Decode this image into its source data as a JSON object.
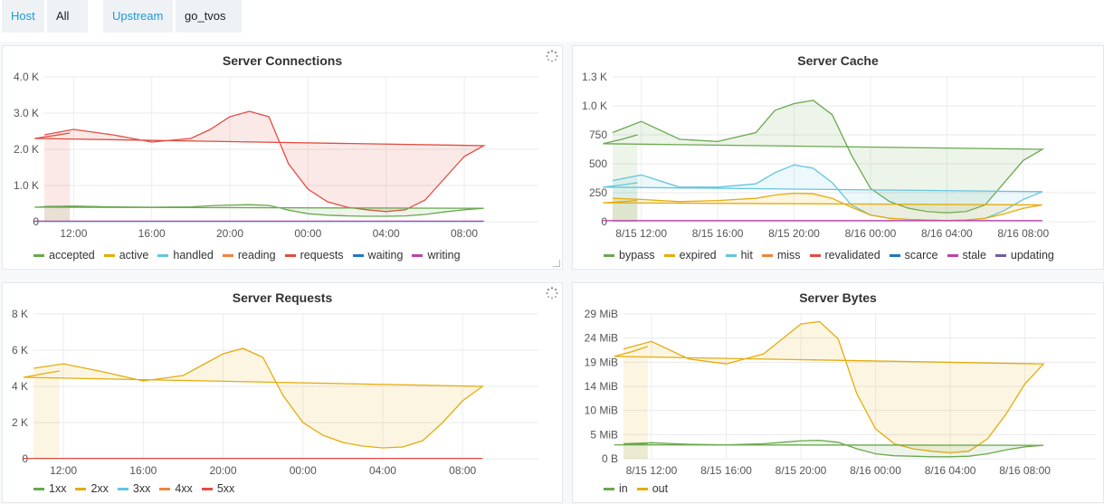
{
  "variables": {
    "host_label": "Host",
    "host_value": "All",
    "upstream_label": "Upstream",
    "upstream_value": "go_tvos"
  },
  "panels": {
    "connections": {
      "title": "Server Connections",
      "legend": [
        {
          "name": "accepted",
          "color": "#6aa84f"
        },
        {
          "name": "active",
          "color": "#e5ac0e"
        },
        {
          "name": "handled",
          "color": "#64c5e0"
        },
        {
          "name": "reading",
          "color": "#ef843c"
        },
        {
          "name": "requests",
          "color": "#e24d42"
        },
        {
          "name": "waiting",
          "color": "#1f78c1"
        },
        {
          "name": "writing",
          "color": "#ba43a9"
        }
      ]
    },
    "cache": {
      "title": "Server Cache",
      "legend": [
        {
          "name": "bypass",
          "color": "#6aa84f"
        },
        {
          "name": "expired",
          "color": "#e5ac0e"
        },
        {
          "name": "hit",
          "color": "#64c5e0"
        },
        {
          "name": "miss",
          "color": "#ef843c"
        },
        {
          "name": "revalidated",
          "color": "#e24d42"
        },
        {
          "name": "scarce",
          "color": "#1f78c1"
        },
        {
          "name": "stale",
          "color": "#ba43a9"
        },
        {
          "name": "updating",
          "color": "#705da0"
        }
      ]
    },
    "requests": {
      "title": "Server Requests",
      "legend": [
        {
          "name": "1xx",
          "color": "#6aa84f"
        },
        {
          "name": "2xx",
          "color": "#e5ac0e"
        },
        {
          "name": "3xx",
          "color": "#64c5e0"
        },
        {
          "name": "4xx",
          "color": "#ef843c"
        },
        {
          "name": "5xx",
          "color": "#e24d42"
        }
      ]
    },
    "bytes": {
      "title": "Server Bytes",
      "legend": [
        {
          "name": "in",
          "color": "#6aa84f"
        },
        {
          "name": "out",
          "color": "#e5ac0e"
        }
      ]
    }
  },
  "chart_data": [
    {
      "type": "area",
      "title": "Server Connections",
      "x_ticks": [
        "12:00",
        "16:00",
        "20:00",
        "00:00",
        "04:00",
        "08:00"
      ],
      "y_ticks": [
        "0",
        "1.0 K",
        "2.0 K",
        "3.0 K",
        "4.0 K"
      ],
      "ylim": [
        0,
        4000
      ],
      "x_hours": [
        10.5,
        12,
        14,
        16,
        18,
        19,
        20,
        21,
        22,
        23,
        0,
        1,
        2,
        3,
        4,
        5,
        6,
        7,
        8,
        9,
        10,
        11,
        11.8
      ],
      "series": [
        {
          "name": "requests",
          "color": "#e24d42",
          "values": [
            2400,
            2550,
            2400,
            2200,
            2300,
            2550,
            2900,
            3050,
            2900,
            1600,
            900,
            550,
            400,
            330,
            280,
            330,
            600,
            1200,
            1800,
            2100,
            2300,
            2380,
            2450
          ]
        },
        {
          "name": "accepted",
          "color": "#6aa84f",
          "values": [
            420,
            430,
            410,
            400,
            410,
            440,
            460,
            470,
            450,
            320,
            220,
            180,
            160,
            150,
            150,
            160,
            200,
            270,
            330,
            370,
            400,
            420,
            430
          ]
        },
        {
          "name": "waiting",
          "color": "#1f78c1",
          "values": [
            10,
            10,
            10,
            10,
            10,
            10,
            10,
            10,
            10,
            10,
            10,
            10,
            10,
            10,
            10,
            10,
            10,
            10,
            10,
            10,
            10,
            10,
            10
          ]
        },
        {
          "name": "writing",
          "color": "#ba43a9",
          "values": [
            15,
            15,
            15,
            15,
            15,
            15,
            15,
            15,
            15,
            15,
            15,
            15,
            15,
            15,
            15,
            15,
            15,
            15,
            15,
            15,
            15,
            15,
            15
          ]
        }
      ]
    },
    {
      "type": "area",
      "title": "Server Cache",
      "x_ticks": [
        "8/15 12:00",
        "8/15 16:00",
        "8/15 20:00",
        "8/16 00:00",
        "8/16 04:00",
        "8/16 08:00"
      ],
      "y_ticks": [
        "0",
        "250",
        "500",
        "750",
        "1.0 K",
        "1.3 K"
      ],
      "ylim": [
        0,
        1300
      ],
      "x_hours": [
        10.5,
        12,
        14,
        16,
        18,
        19,
        20,
        21,
        22,
        23,
        0,
        1,
        2,
        3,
        4,
        5,
        6,
        7,
        8,
        9,
        10,
        11,
        11.8
      ],
      "series": [
        {
          "name": "bypass",
          "color": "#6aa84f",
          "values": [
            800,
            900,
            740,
            720,
            800,
            1000,
            1060,
            1090,
            960,
            600,
            300,
            180,
            120,
            90,
            80,
            90,
            150,
            350,
            550,
            650,
            700,
            740,
            780
          ]
        },
        {
          "name": "hit",
          "color": "#64c5e0",
          "values": [
            370,
            420,
            310,
            310,
            340,
            440,
            510,
            480,
            350,
            150,
            60,
            30,
            20,
            15,
            10,
            15,
            30,
            100,
            200,
            270,
            310,
            330,
            350
          ]
        },
        {
          "name": "expired",
          "color": "#e5ac0e",
          "values": [
            210,
            200,
            180,
            190,
            210,
            240,
            255,
            250,
            210,
            130,
            60,
            30,
            20,
            15,
            10,
            15,
            30,
            70,
            120,
            150,
            170,
            180,
            190
          ]
        },
        {
          "name": "stale",
          "color": "#ba43a9",
          "values": [
            10,
            10,
            10,
            10,
            10,
            10,
            10,
            10,
            10,
            10,
            10,
            10,
            10,
            10,
            10,
            10,
            10,
            10,
            10,
            10,
            10,
            10,
            10
          ]
        }
      ]
    },
    {
      "type": "area",
      "title": "Server Requests",
      "x_ticks": [
        "12:00",
        "16:00",
        "20:00",
        "00:00",
        "04:00",
        "08:00"
      ],
      "y_ticks": [
        "0",
        "2 K",
        "4 K",
        "6 K",
        "8 K"
      ],
      "ylim": [
        0,
        8000
      ],
      "x_hours": [
        10.5,
        12,
        14,
        16,
        18,
        19,
        20,
        21,
        22,
        23,
        0,
        1,
        2,
        3,
        4,
        5,
        6,
        7,
        8,
        9,
        10,
        11,
        11.8
      ],
      "series": [
        {
          "name": "2xx",
          "color": "#e5ac0e",
          "values": [
            5000,
            5250,
            4800,
            4300,
            4600,
            5200,
            5800,
            6100,
            5600,
            3500,
            2000,
            1300,
            900,
            700,
            600,
            650,
            1000,
            2000,
            3200,
            4000,
            4500,
            4700,
            4850
          ]
        },
        {
          "name": "5xx",
          "color": "#e24d42",
          "values": [
            20,
            20,
            20,
            20,
            20,
            20,
            20,
            20,
            20,
            20,
            20,
            20,
            20,
            20,
            20,
            20,
            20,
            20,
            20,
            20,
            20,
            20,
            20
          ]
        }
      ]
    },
    {
      "type": "area",
      "title": "Server Bytes",
      "x_ticks": [
        "8/15 12:00",
        "8/15 16:00",
        "8/15 20:00",
        "8/16 00:00",
        "8/16 04:00",
        "8/16 08:00"
      ],
      "y_ticks": [
        "0 B",
        "5 MiB",
        "10 MiB",
        "14 MiB",
        "19 MiB",
        "24 MiB",
        "29 MiB"
      ],
      "ylim": [
        0,
        29
      ],
      "x_hours": [
        10.5,
        12,
        14,
        16,
        18,
        19,
        20,
        21,
        22,
        23,
        0,
        1,
        2,
        3,
        4,
        5,
        6,
        7,
        8,
        9,
        10,
        11,
        11.8
      ],
      "series": [
        {
          "name": "out",
          "color": "#e5ac0e",
          "values": [
            22,
            23.5,
            20,
            19,
            21,
            24,
            27,
            27.5,
            24,
            13,
            6,
            3,
            2,
            1.5,
            1.2,
            1.5,
            4,
            9,
            15,
            19,
            20.5,
            21.5,
            22.5
          ]
        },
        {
          "name": "in",
          "color": "#6aa84f",
          "values": [
            3,
            3.2,
            2.9,
            2.8,
            3,
            3.3,
            3.6,
            3.7,
            3.3,
            2,
            1,
            0.6,
            0.5,
            0.4,
            0.4,
            0.5,
            1,
            1.8,
            2.4,
            2.7,
            2.8,
            2.9,
            3
          ]
        }
      ]
    }
  ]
}
